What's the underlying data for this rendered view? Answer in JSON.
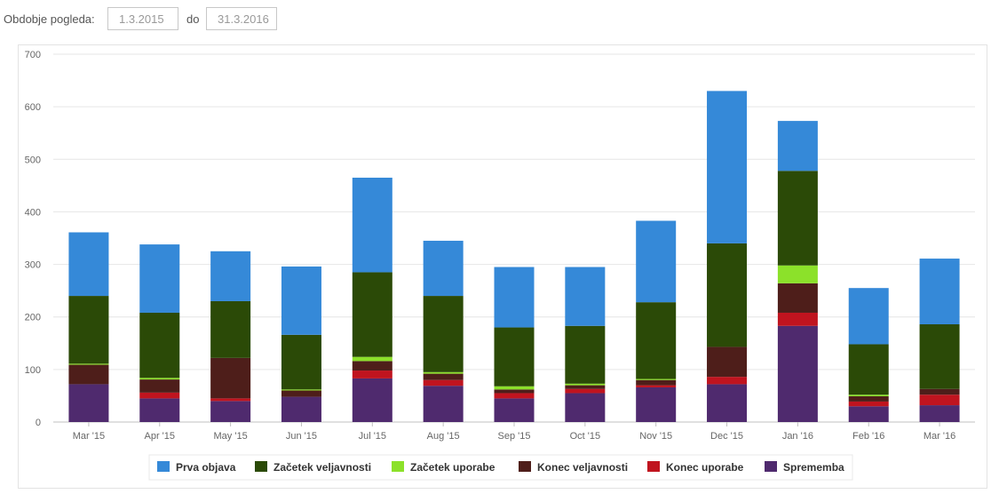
{
  "filter": {
    "label": "Obdobje pogleda:",
    "from_value": "1.3.2015",
    "separator": "do",
    "to_value": "31.3.2016"
  },
  "chart_data": {
    "type": "bar",
    "stacked": true,
    "title": "",
    "xlabel": "",
    "ylabel": "",
    "ylim": [
      0,
      700
    ],
    "yticks": [
      0,
      100,
      200,
      300,
      400,
      500,
      600,
      700
    ],
    "grid": true,
    "legend_position": "bottom",
    "categories": [
      "Mar '15",
      "Apr '15",
      "May '15",
      "Jun '15",
      "Jul '15",
      "Aug '15",
      "Sep '15",
      "Oct '15",
      "Nov '15",
      "Dec '15",
      "Jan '16",
      "Feb '16",
      "Mar '16"
    ],
    "series": [
      {
        "name": "Sprememba",
        "color": "#4f2a6e",
        "values": [
          72,
          45,
          40,
          48,
          83,
          69,
          45,
          55,
          66,
          72,
          183,
          30,
          32
        ]
      },
      {
        "name": "Konec uporabe",
        "color": "#c0141f",
        "values": [
          0,
          11,
          5,
          0,
          15,
          11,
          10,
          8,
          4,
          14,
          25,
          9,
          20
        ]
      },
      {
        "name": "Konec veljavnosti",
        "color": "#4e1e1a",
        "values": [
          37,
          25,
          77,
          12,
          18,
          12,
          7,
          7,
          10,
          57,
          56,
          10,
          11
        ]
      },
      {
        "name": "Začetek uporabe",
        "color": "#8ce12a",
        "values": [
          2,
          3,
          0,
          2,
          8,
          3,
          6,
          3,
          2,
          0,
          34,
          3,
          0
        ]
      },
      {
        "name": "Začetek veljavnosti",
        "color": "#2b4a07",
        "values": [
          129,
          124,
          108,
          104,
          161,
          145,
          112,
          110,
          146,
          197,
          180,
          96,
          123
        ]
      },
      {
        "name": "Prva objava",
        "color": "#3589d8",
        "values": [
          121,
          130,
          95,
          130,
          180,
          105,
          115,
          112,
          155,
          290,
          95,
          107,
          125
        ]
      }
    ],
    "legend_order": [
      "Prva objava",
      "Začetek veljavnosti",
      "Začetek uporabe",
      "Konec veljavnosti",
      "Konec uporabe",
      "Sprememba"
    ]
  }
}
